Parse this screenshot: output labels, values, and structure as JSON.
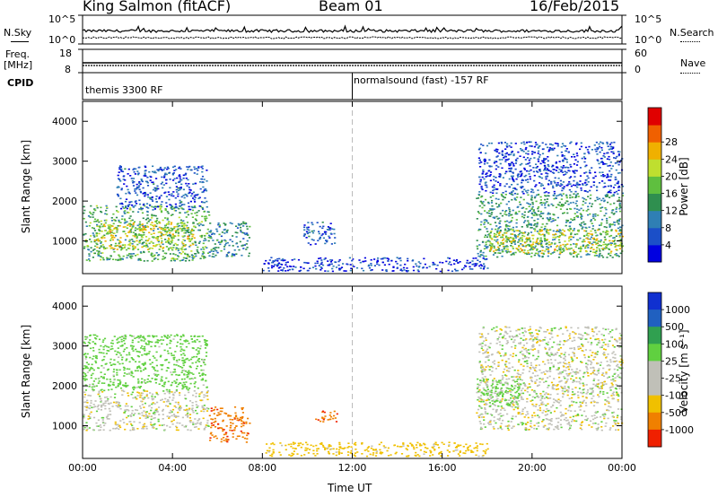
{
  "header": {
    "station": "King Salmon (fitACF)",
    "beam": "Beam 01",
    "date": "16/Feb/2015"
  },
  "top_panels": {
    "nsky_label": "N.Sky",
    "nsearch_label": "N.Search",
    "freq_label": "Freq.",
    "freq_unit": "[MHz]",
    "nave_label": "Nave",
    "cpid_label": "CPID",
    "nsky_ticks": [
      "10^5",
      "10^0"
    ],
    "nsearch_ticks": [
      "10^5",
      "10^0"
    ],
    "freq_ticks": [
      "18",
      "8"
    ],
    "nave_ticks": [
      "60",
      "0"
    ],
    "cpid_segments": [
      {
        "label": "themis 3300 RF",
        "start_hour": 0,
        "end_hour": 12
      },
      {
        "label": "normalsound (fast) -157 RF",
        "start_hour": 12,
        "end_hour": 24
      }
    ]
  },
  "x_axis": {
    "label": "Time UT",
    "ticks": [
      "00:00",
      "04:00",
      "08:00",
      "12:00",
      "16:00",
      "20:00",
      "00:00"
    ],
    "tick_hours": [
      0,
      4,
      8,
      12,
      16,
      20,
      24
    ]
  },
  "chart_data": [
    {
      "type": "heatmap",
      "name": "power",
      "ylabel": "Slant Range [km]",
      "ylim": [
        180,
        4500
      ],
      "xlim": [
        0,
        24
      ],
      "y_ticks": [
        1000,
        2000,
        3000,
        4000
      ],
      "y_tick_labels": [
        "1000",
        "2000",
        "3000",
        "4000"
      ],
      "colorbar_label": "Power [dB]",
      "colorbar_ticks": [
        "4",
        "8",
        "12",
        "16",
        "20",
        "24",
        "28"
      ],
      "colorbar_colors": [
        "#0000e0",
        "#1b4fc8",
        "#2f7fb4",
        "#2f8f4f",
        "#5fbf3f",
        "#bfdf2f",
        "#f0b000",
        "#f06000",
        "#e00000"
      ],
      "scatter_regions": [
        {
          "t0": 0.0,
          "t1": 5.6,
          "r0": 500,
          "r1": 1900,
          "value": 14
        },
        {
          "t0": 0.5,
          "t1": 5.0,
          "r0": 800,
          "r1": 1500,
          "value": 20
        },
        {
          "t0": 1.5,
          "t1": 5.5,
          "r0": 1800,
          "r1": 2900,
          "value": 6
        },
        {
          "t0": 5.6,
          "t1": 7.4,
          "r0": 600,
          "r1": 1500,
          "value": 10
        },
        {
          "t0": 9.8,
          "t1": 11.2,
          "r0": 900,
          "r1": 1500,
          "value": 6
        },
        {
          "t0": 8.0,
          "t1": 18.0,
          "r0": 250,
          "r1": 600,
          "value": 4
        },
        {
          "t0": 17.5,
          "t1": 24.0,
          "r0": 600,
          "r1": 2200,
          "value": 12
        },
        {
          "t0": 18.0,
          "t1": 24.0,
          "r0": 700,
          "r1": 1300,
          "value": 20
        },
        {
          "t0": 17.6,
          "t1": 24.0,
          "r0": 2200,
          "r1": 3500,
          "value": 5
        }
      ]
    },
    {
      "type": "heatmap",
      "name": "velocity",
      "ylabel": "Slant Range [km]",
      "ylim": [
        180,
        4500
      ],
      "xlim": [
        0,
        24
      ],
      "y_ticks": [
        1000,
        2000,
        3000,
        4000
      ],
      "y_tick_labels": [
        "1000",
        "2000",
        "3000",
        "4000"
      ],
      "colorbar_label": "Velocity [m s⁻¹]",
      "colorbar_ticks": [
        "1000",
        "500",
        "100",
        "25",
        "-25",
        "-100",
        "-500",
        "-1000"
      ],
      "colorbar_colors": [
        "#1030d0",
        "#2060c0",
        "#30a050",
        "#60d040",
        "#c0c0b8",
        "#c0c0b8",
        "#f0c000",
        "#f08000",
        "#f02000"
      ],
      "scatter_regions": [
        {
          "t0": 0.0,
          "t1": 5.6,
          "r0": 900,
          "r1": 1900,
          "value": 0
        },
        {
          "t0": 0.0,
          "t1": 5.5,
          "r0": 1900,
          "r1": 3300,
          "value": 60
        },
        {
          "t0": 5.6,
          "t1": 7.4,
          "r0": 600,
          "r1": 1500,
          "value": -400
        },
        {
          "t0": 10.3,
          "t1": 11.3,
          "r0": 1100,
          "r1": 1400,
          "value": -400
        },
        {
          "t0": 8.0,
          "t1": 18.0,
          "r0": 250,
          "r1": 600,
          "value": -60
        },
        {
          "t0": 17.5,
          "t1": 24.0,
          "r0": 900,
          "r1": 2000,
          "value": 0
        },
        {
          "t0": 17.5,
          "t1": 19.5,
          "r0": 1500,
          "r1": 2200,
          "value": 60
        },
        {
          "t0": 17.6,
          "t1": 24.0,
          "r0": 2000,
          "r1": 3500,
          "value": 0
        }
      ]
    }
  ]
}
